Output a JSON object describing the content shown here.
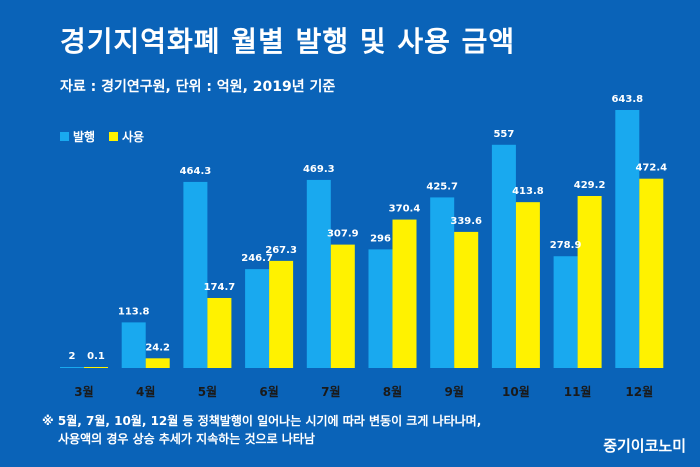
{
  "title": "경기지역화폐 월별 발행 및 사용 금액",
  "subtitle": "자료 : 경기연구원, 단위 : 억원, 2019년 기준",
  "legend": [
    {
      "name": "발행",
      "color": "#19a9ef"
    },
    {
      "name": "사용",
      "color": "#fff200"
    }
  ],
  "note": {
    "marker": "※",
    "line1": "5월, 7월, 10월, 12월 등 정책발행이 일어나는 시기에 따라 변동이 크게 나타나며,",
    "line2": "사용액의 경우 상승 추세가 지속하는 것으로 나타남"
  },
  "logo": "중기이코노미",
  "chart_data": {
    "type": "bar",
    "title": "경기지역화폐 월별 발행 및 사용 금액",
    "categories": [
      "3월",
      "4월",
      "5월",
      "6월",
      "7월",
      "8월",
      "9월",
      "10월",
      "11월",
      "12월"
    ],
    "series": [
      {
        "name": "발행",
        "color": "#19a9ef",
        "values": [
          2,
          113.8,
          464.3,
          246.7,
          469.3,
          296,
          425.7,
          557,
          278.9,
          643.8
        ]
      },
      {
        "name": "사용",
        "color": "#fff200",
        "values": [
          0.1,
          24.2,
          174.7,
          267.3,
          307.9,
          370.4,
          339.6,
          413.8,
          429.2,
          472.4
        ]
      }
    ],
    "value_labels": [
      [
        "2",
        "113.8",
        "464.3",
        "246.7",
        "469.3",
        "296",
        "425.7",
        "557",
        "278.9",
        "643.8"
      ],
      [
        "0.1",
        "24.2",
        "174.7",
        "267.3",
        "307.9",
        "370.4",
        "339.6",
        "413.8",
        "429.2",
        "472.4"
      ]
    ],
    "ylim": [
      0,
      700
    ],
    "grid": false,
    "legend_position": "top-left"
  }
}
